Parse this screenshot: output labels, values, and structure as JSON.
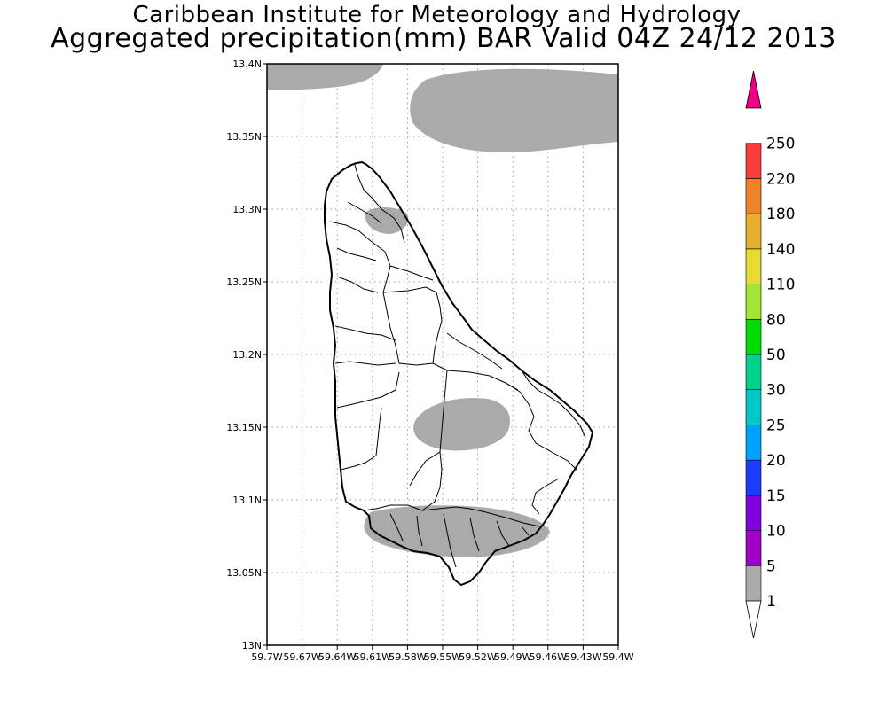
{
  "title": {
    "line1": "Caribbean Institute for Meteorology and Hydrology",
    "line2": "Aggregated precipitation(mm) BAR Valid 04Z 24/12 2013"
  },
  "map": {
    "region": "Barbados",
    "lat_range": [
      13.0,
      13.4
    ],
    "lon_range": [
      -59.7,
      -59.4
    ],
    "lat_ticks": [
      {
        "value": 13.4,
        "label": "13.4N"
      },
      {
        "value": 13.35,
        "label": "13.35N"
      },
      {
        "value": 13.3,
        "label": "13.3N"
      },
      {
        "value": 13.25,
        "label": "13.25N"
      },
      {
        "value": 13.2,
        "label": "13.2N"
      },
      {
        "value": 13.15,
        "label": "13.15N"
      },
      {
        "value": 13.1,
        "label": "13.1N"
      },
      {
        "value": 13.05,
        "label": "13.05N"
      },
      {
        "value": 13.0,
        "label": "13N"
      }
    ],
    "lon_ticks": [
      {
        "value": -59.7,
        "label": "59.7W"
      },
      {
        "value": -59.67,
        "label": "59.67W"
      },
      {
        "value": -59.64,
        "label": "59.64W"
      },
      {
        "value": -59.61,
        "label": "59.61W"
      },
      {
        "value": -59.58,
        "label": "59.58W"
      },
      {
        "value": -59.55,
        "label": "59.55W"
      },
      {
        "value": -59.52,
        "label": "59.52W"
      },
      {
        "value": -59.49,
        "label": "59.49W"
      },
      {
        "value": -59.46,
        "label": "59.46W"
      },
      {
        "value": -59.43,
        "label": "59.43W"
      },
      {
        "value": -59.4,
        "label": "59.4W"
      }
    ],
    "grid": true,
    "precip_color": "#aaaaaa",
    "precip_class": "1-5 mm"
  },
  "colorbar": {
    "levels": [
      {
        "label": "1",
        "color": "#ffffff"
      },
      {
        "label": "5",
        "color": "#aaaaaa"
      },
      {
        "label": "10",
        "color": "#a000c8"
      },
      {
        "label": "15",
        "color": "#8200dc"
      },
      {
        "label": "20",
        "color": "#1e3cff"
      },
      {
        "label": "25",
        "color": "#00a0ff"
      },
      {
        "label": "30",
        "color": "#00c8c8"
      },
      {
        "label": "50",
        "color": "#00d28c"
      },
      {
        "label": "80",
        "color": "#00dc00"
      },
      {
        "label": "110",
        "color": "#a0e632"
      },
      {
        "label": "140",
        "color": "#e6dc32"
      },
      {
        "label": "180",
        "color": "#e6af2d"
      },
      {
        "label": "220",
        "color": "#f08228"
      },
      {
        "label": "250",
        "color": "#fa3c3c"
      }
    ],
    "top_arrow_color": "#f00082",
    "bottom_arrow_color": "#ffffff"
  }
}
